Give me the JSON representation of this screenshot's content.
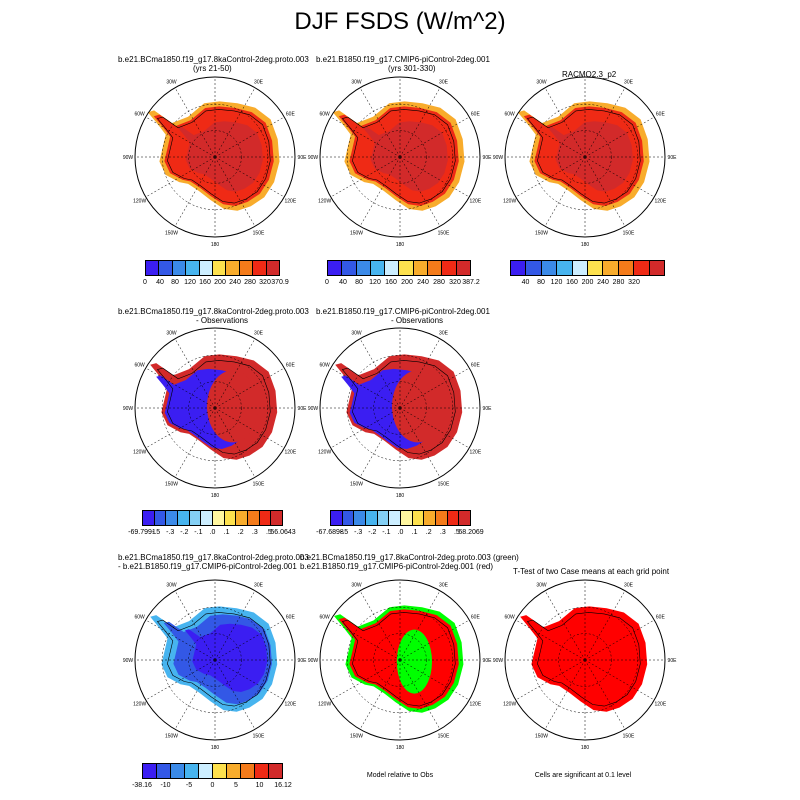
{
  "title": "DJF FSDS (W/m^2)",
  "row1": {
    "p1": {
      "line1": "b.e21.BCma1850.f19_g17.8kaControl-2deg.proto.003",
      "line2": "(yrs 21-50)"
    },
    "p2": {
      "line1": "b.e21.B1850.f19_g17.CMIP6-piControl-2deg.001",
      "line2": "(yrs 301-330)"
    },
    "p3": {
      "line1": "RACMO2.3_p2"
    }
  },
  "row2": {
    "p1": {
      "line1": "b.e21.BCma1850.f19_g17.8kaControl-2deg.proto.003",
      "line2": "- Observations"
    },
    "p2": {
      "line1": "b.e21.B1850.f19_g17.CMIP6-piControl-2deg.001",
      "line2": "- Observations"
    }
  },
  "row3": {
    "p1": {
      "line1": "b.e21.BCma1850.f19_g17.8kaControl-2deg.proto.003",
      "line2": "- b.e21.B1850.f19_g17.CMIP6-piControl-2deg.001"
    },
    "p2": {
      "line1": "b.e21.BCma1850.f19_g17.8kaControl-2deg.proto.003 (green)",
      "line2": "b.e21.B1850.f19_g17.CMIP6-piControl-2deg.001 (red)"
    },
    "p3": {
      "line1": "T-Test of two Case means at each grid point"
    }
  },
  "notes": {
    "model_rel_obs": "Model relative to Obs",
    "significant": "Cells are significant at 0.1 level"
  },
  "map_labels": [
    "30W",
    "30E",
    "60W",
    "60E",
    "90W",
    "90E",
    "120W",
    "120E",
    "150W",
    "150E",
    "180"
  ],
  "colorbars": {
    "abs1": [
      "0",
      "40",
      "80",
      "120",
      "160",
      "200",
      "240",
      "280",
      "320",
      "370.9"
    ],
    "abs2": [
      "0",
      "40",
      "80",
      "120",
      "160",
      "200",
      "240",
      "280",
      "320",
      "387.2"
    ],
    "abs3": [
      "40",
      "80",
      "120",
      "160",
      "200",
      "240",
      "280",
      "320"
    ],
    "diff1": [
      "-69.7991",
      "-.5",
      "-.3",
      "-.2",
      "-.1",
      ".0",
      ".1",
      ".2",
      ".3",
      ".5",
      "56.0643"
    ],
    "diff2": [
      "-67.6898",
      "-.5",
      "-.3",
      "-.2",
      "-.1",
      ".0",
      ".1",
      ".2",
      ".3",
      ".5",
      "68.2069"
    ],
    "diff3": [
      "-38.16",
      "-10",
      "-5",
      "0",
      "5",
      "10",
      "16.12"
    ]
  },
  "colors": {
    "abs": [
      "#3b1ef2",
      "#3358e6",
      "#3b8ae8",
      "#47b4ef",
      "#cceeff",
      "#fde14e",
      "#f8ac2c",
      "#f47b1a",
      "#ef2a15",
      "#d22a2a"
    ],
    "diff": [
      "#3b1ef2",
      "#3358e6",
      "#3b8ae8",
      "#47b4ef",
      "#84d0f5",
      "#cceeff",
      "#fff7a0",
      "#fde14e",
      "#f8ac2c",
      "#f47b1a",
      "#ef2a15",
      "#d22a2a"
    ],
    "diff3": [
      "#3b1ef2",
      "#3358e6",
      "#3b8ae8",
      "#47b4ef",
      "#cceeff",
      "#fde14e",
      "#f8ac2c",
      "#f47b1a",
      "#ef2a15",
      "#d22a2a"
    ],
    "green": "#00ff00",
    "red": "#ff0000"
  }
}
